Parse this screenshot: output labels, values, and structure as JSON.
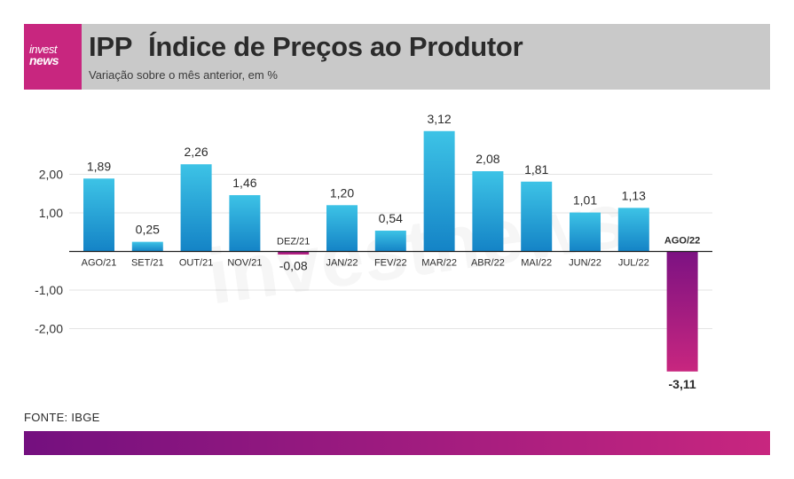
{
  "brand": {
    "logo_line1": "invest",
    "logo_line2": "news"
  },
  "header": {
    "code": "IPP",
    "title": "Índice de Preços ao Produtor",
    "subtitle": "Variação sobre o mês anterior, em %"
  },
  "colors": {
    "bar_top": "#3dc3e6",
    "bar_bottom": "#1483c6",
    "negative_top": "#7c1282",
    "negative_bottom": "#c8267f",
    "header_bg": "#c9c9c9",
    "logo_bg": "#c8267f"
  },
  "source": "FONTE: IBGE",
  "chart_data": {
    "type": "bar",
    "categories": [
      "AGO/21",
      "SET/21",
      "OUT/21",
      "NOV/21",
      "DEZ/21",
      "JAN/22",
      "FEV/22",
      "MAR/22",
      "ABR/22",
      "MAI/22",
      "JUN/22",
      "JUL/22",
      "AGO/22"
    ],
    "values": [
      1.89,
      0.25,
      2.26,
      1.46,
      -0.08,
      1.2,
      0.54,
      3.12,
      2.08,
      1.81,
      1.01,
      1.13,
      -3.11
    ],
    "value_labels": [
      "1,89",
      "0,25",
      "2,26",
      "1,46",
      "-0,08",
      "1,20",
      "0,54",
      "3,12",
      "2,08",
      "1,81",
      "1,01",
      "1,13",
      "-3,11"
    ],
    "highlight": "AGO/22",
    "yticks": [
      2,
      1,
      -1,
      -2
    ],
    "ytick_labels": [
      "2,00",
      "1,00",
      "-1,00",
      "-2,00"
    ],
    "ylim": [
      -3.3,
      3.3
    ],
    "grid": true,
    "watermark": "investnews"
  }
}
